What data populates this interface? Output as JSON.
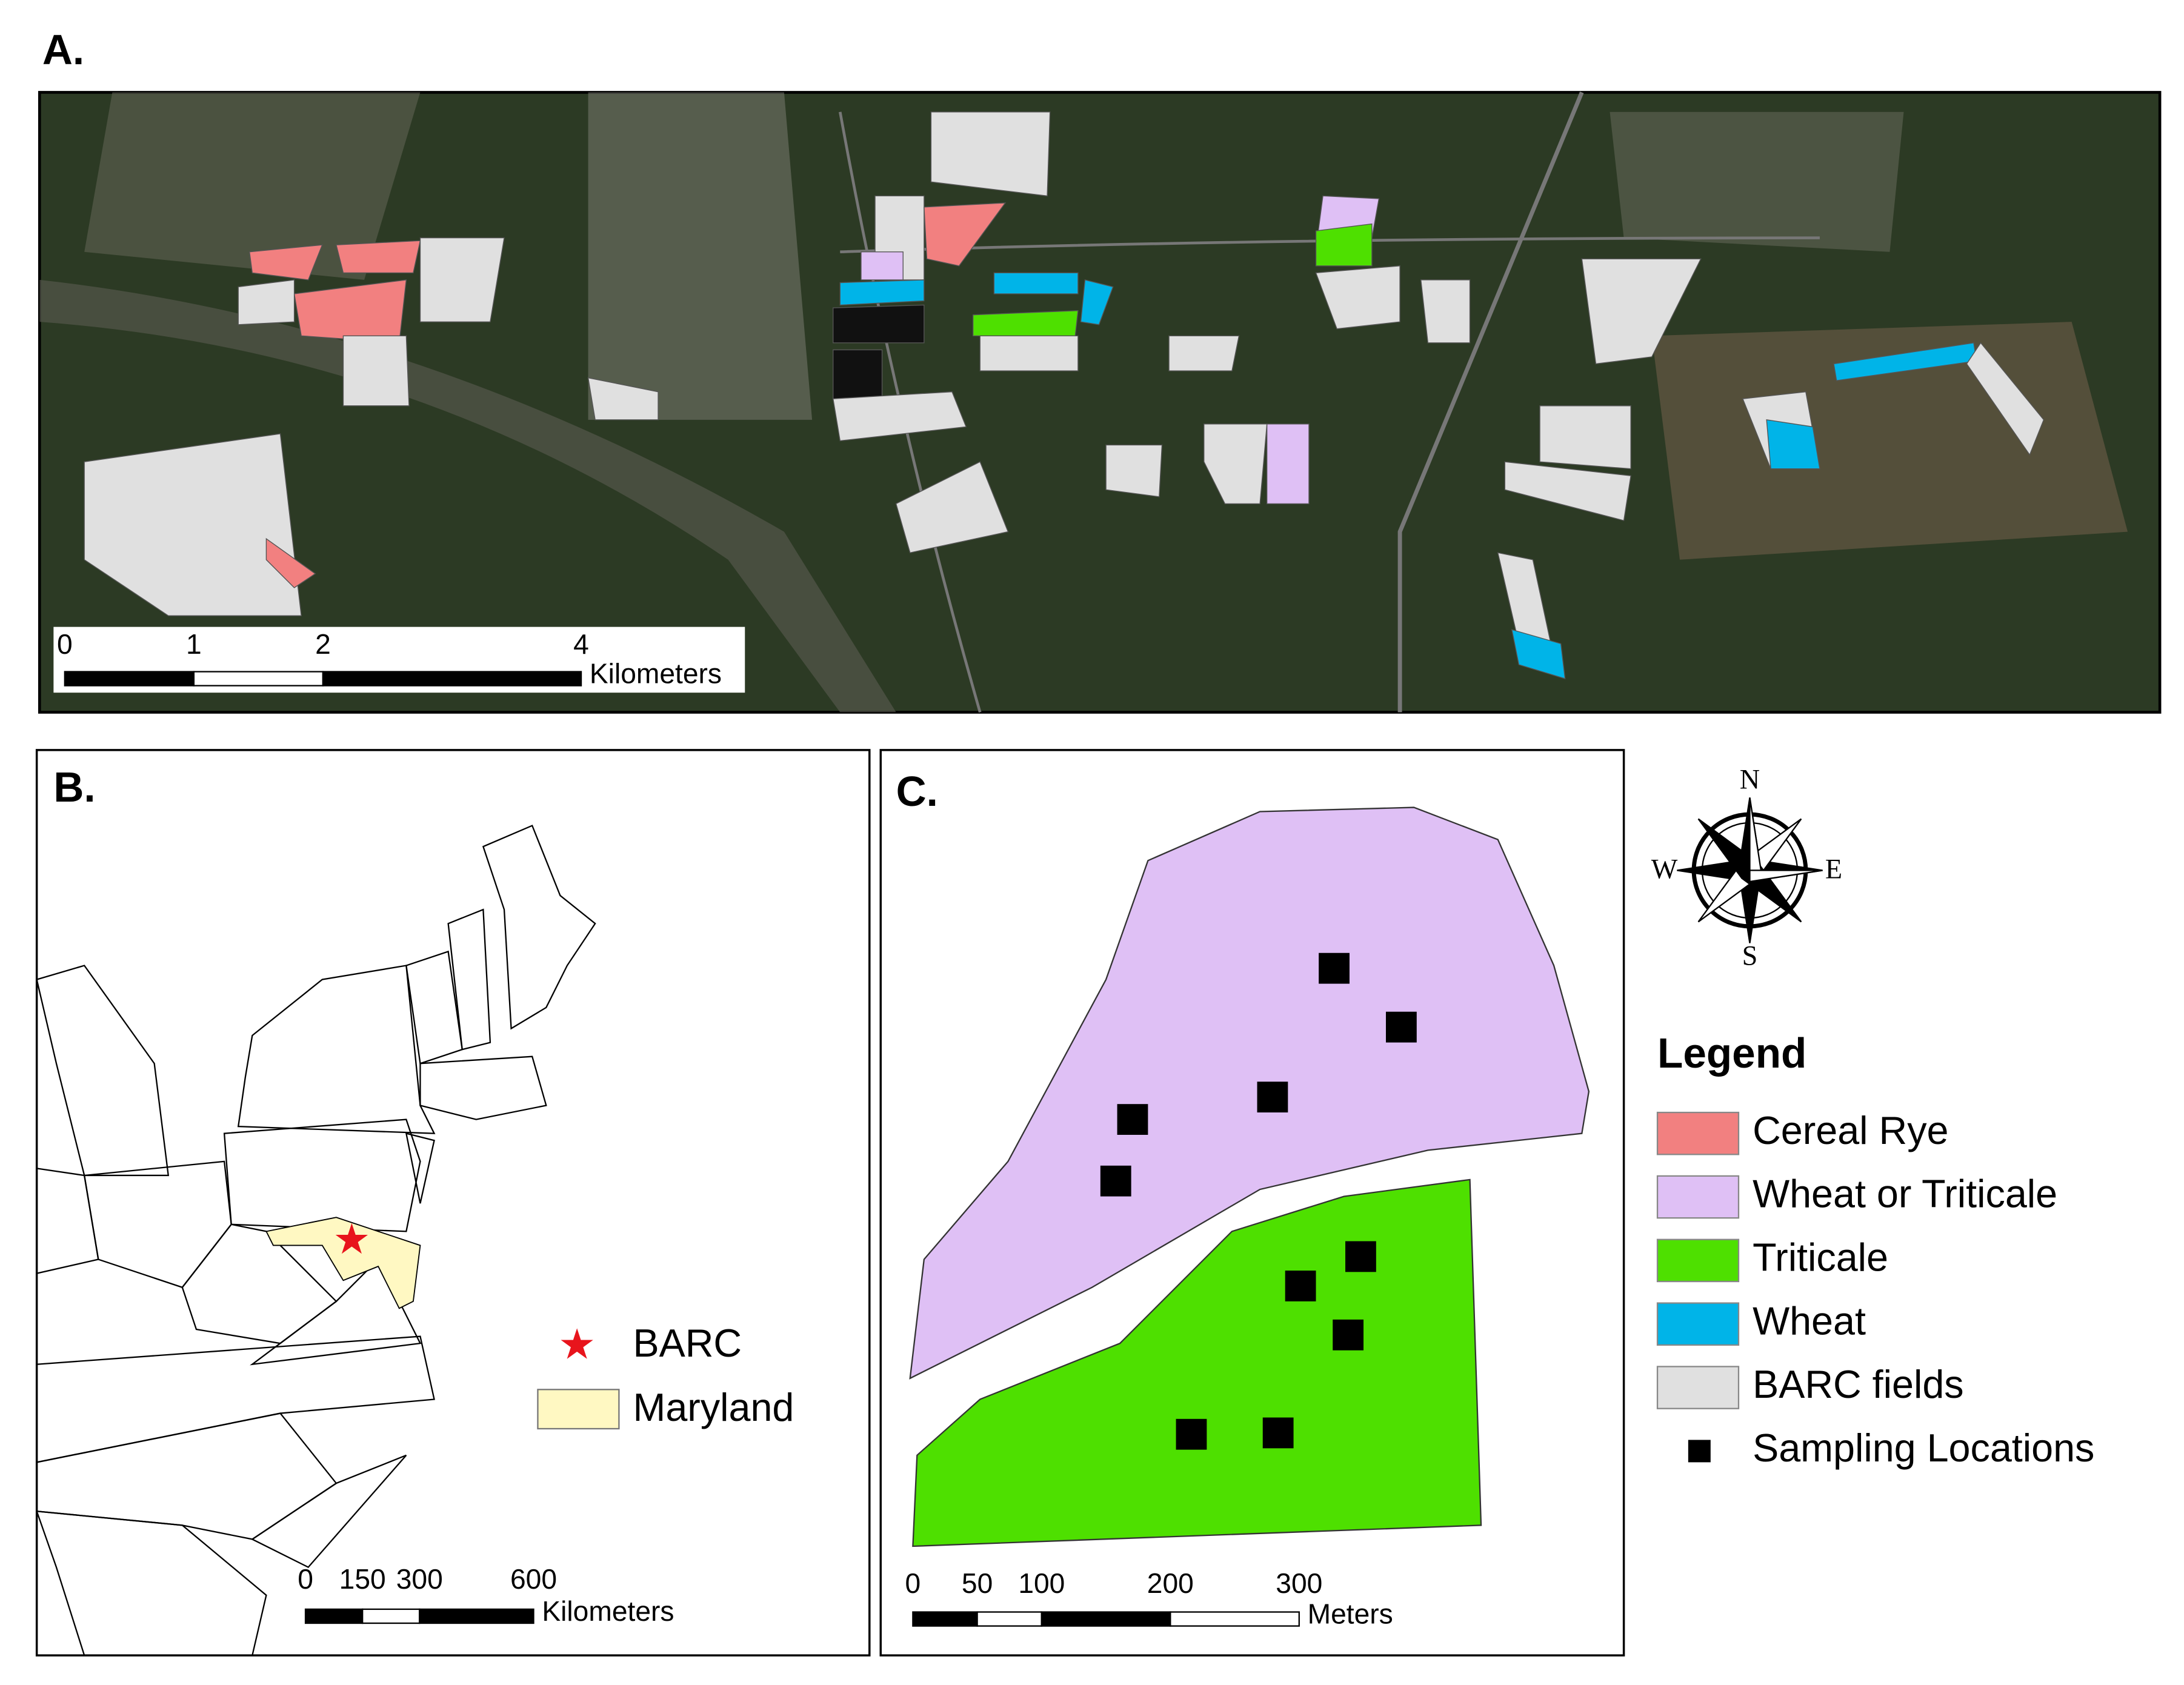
{
  "panels": {
    "a": {
      "label": "A.",
      "scale_bar": {
        "ticks": [
          0,
          1,
          2,
          4
        ],
        "unit": "Kilometers"
      }
    },
    "b": {
      "label": "B.",
      "scale_bar": {
        "ticks": [
          0,
          150,
          300,
          600
        ],
        "unit": "Kilometers"
      },
      "legend": [
        {
          "label": "BARC",
          "color": "#e8141c"
        },
        {
          "label": "Maryland",
          "color": "#fff8c2"
        }
      ]
    },
    "c": {
      "label": "C.",
      "scale_bar": {
        "ticks": [
          0,
          50,
          100,
          200,
          300
        ],
        "unit": "Meters"
      }
    }
  },
  "compass": {
    "n": "N",
    "e": "E",
    "s": "S",
    "w": "W"
  },
  "legend": {
    "title": "Legend",
    "items": [
      {
        "label": "Cereal Rye",
        "color": "#f28080"
      },
      {
        "label": "Wheat or Triticale",
        "color": "#dfc0f5"
      },
      {
        "label": "Triticale",
        "color": "#4ee000"
      },
      {
        "label": "Wheat",
        "color": "#00b4e8"
      },
      {
        "label": "BARC fields",
        "color": "#e0e0e0"
      },
      {
        "label": "Sampling Locations",
        "color": "#000000"
      }
    ]
  }
}
